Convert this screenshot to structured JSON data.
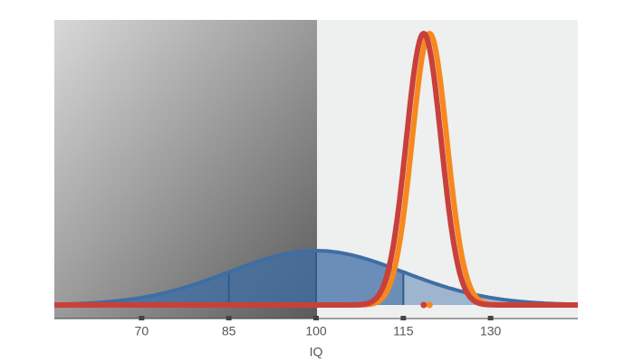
{
  "chart_data": {
    "type": "density",
    "x_label": "IQ",
    "xlim": [
      55,
      145
    ],
    "xticks": [
      70,
      85,
      100,
      115,
      130
    ],
    "band_edges": [
      85,
      100,
      115
    ],
    "series": [
      {
        "color": "#3e6ea4",
        "mean": 100,
        "sd": 15,
        "fill": true
      },
      {
        "color": "#f7881f",
        "mean": 119.5,
        "sd": 3,
        "fill": false,
        "marker": true
      },
      {
        "color": "#c9403b",
        "mean": 118.5,
        "sd": 3,
        "fill": false,
        "marker": true
      }
    ]
  }
}
